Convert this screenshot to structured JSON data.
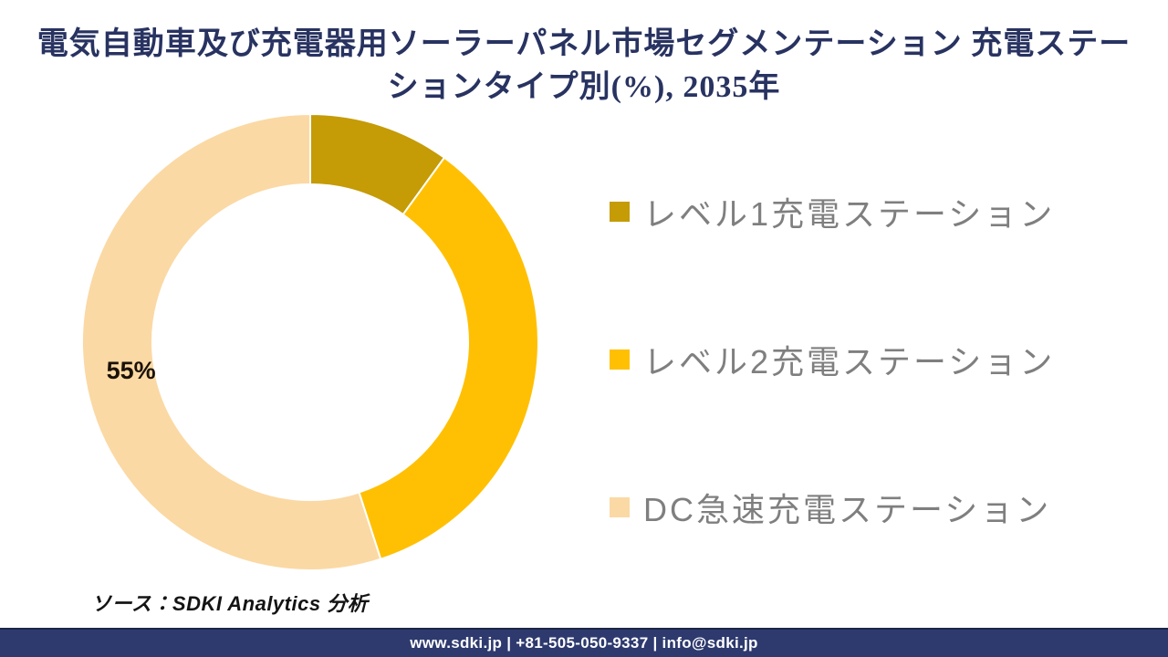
{
  "title": "電気自動車及び充電器用ソーラーパネル市場セグメンテーション 充電ステーションタイプ別(%), 2035年",
  "source": "ソース：SDKI Analytics 分析",
  "footer": {
    "text": "www.sdki.jp | +81-505-050-9337 | info@sdki.jp"
  },
  "chart_data": {
    "type": "pie",
    "subtype": "donut",
    "title": "電気自動車及び充電器用ソーラーパネル市場セグメンテーション 充電ステーションタイプ別(%), 2035年",
    "categories": [
      "レベル1充電ステーション",
      "レベル2充電ステーション",
      "DC急速充電ステーション"
    ],
    "values": [
      10,
      35,
      55
    ],
    "labels": [
      "",
      "",
      "55%"
    ],
    "colors": [
      "#C59B06",
      "#FFC003",
      "#FBD9A4"
    ],
    "start_angle_deg": 0,
    "direction": "clockwise",
    "inner_radius_ratio": 0.69,
    "separator_color": "#ffffff",
    "legend_position": "right",
    "label_color": "#1a1108",
    "notes": "Only the 55% slice (DC急速充電ステーション) carries a visible data label; the 10% and 35% values are estimated from arc angles."
  }
}
